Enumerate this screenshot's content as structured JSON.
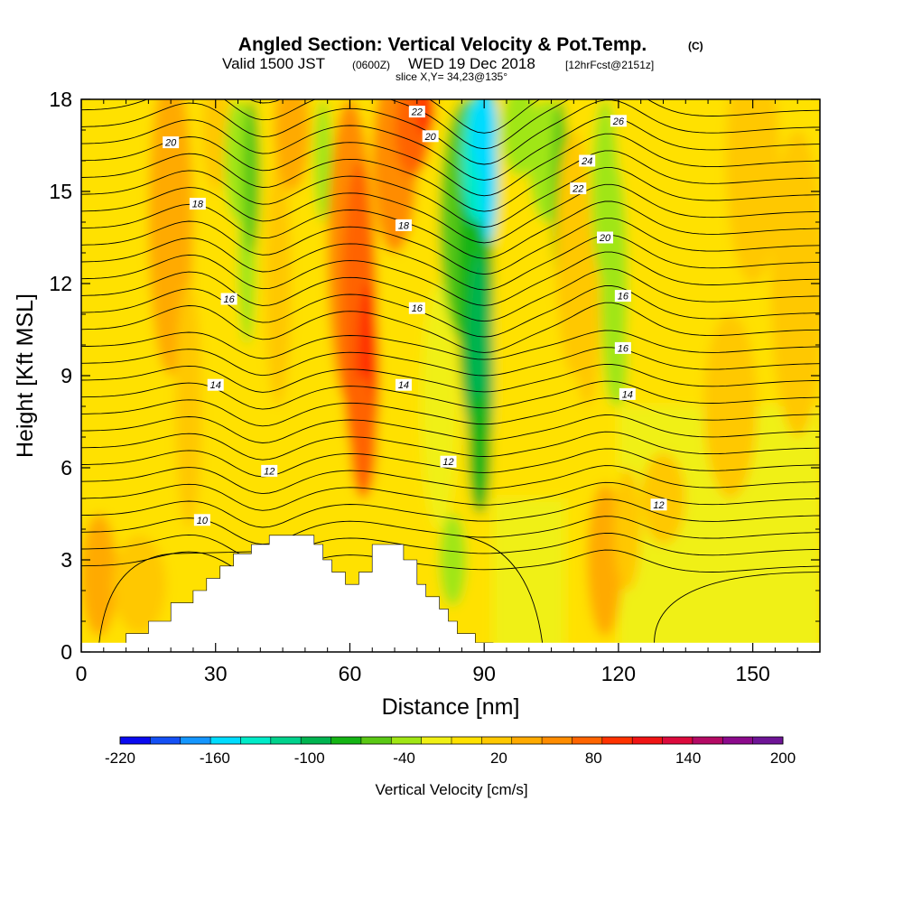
{
  "title": {
    "main": "Angled Section: Vertical Velocity & Pot.Temp.",
    "unit_tag": "(C)",
    "valid_prefix": "Valid 1500 JST",
    "valid_utc": "(0600Z)",
    "valid_date": "WED 19 Dec 2018",
    "forecast": "[12hrFcst@2151z]",
    "slice": "slice X,Y= 34,23@135°"
  },
  "chart_data": {
    "type": "heatmap",
    "xlabel": "Distance [nm]",
    "ylabel": "Height [Kft MSL]",
    "xlim": [
      0,
      165
    ],
    "ylim": [
      0,
      18
    ],
    "x_ticks": [
      "0",
      "30",
      "60",
      "90",
      "120",
      "150"
    ],
    "y_ticks": [
      "0",
      "3",
      "6",
      "9",
      "12",
      "15",
      "18"
    ],
    "colorbar": {
      "title": "Vertical Velocity [cm/s]",
      "tick_labels": [
        "-220",
        "-160",
        "-100",
        "-40",
        "20",
        "80",
        "140",
        "200"
      ],
      "colors": [
        "#0a0af0",
        "#1450f5",
        "#1496ff",
        "#00dcff",
        "#00ebc8",
        "#00d28c",
        "#00b450",
        "#14b414",
        "#5ac814",
        "#a0e614",
        "#f0f014",
        "#ffe100",
        "#ffc800",
        "#ffaa00",
        "#ff8c00",
        "#ff6400",
        "#ff3200",
        "#f01414",
        "#dc0a3c",
        "#b40a64",
        "#8c0a8c",
        "#6e1496"
      ]
    },
    "vertical_velocity_features": [
      {
        "type": "updraft",
        "x": 64,
        "y_range": [
          5,
          16
        ],
        "peak_cm_s": 110
      },
      {
        "type": "updraft",
        "x": 76,
        "y_range": [
          14,
          18
        ],
        "peak_cm_s": 60
      },
      {
        "type": "downdraft",
        "x": 89,
        "y_range": [
          5,
          18
        ],
        "peak_cm_s": -150
      },
      {
        "type": "downdraft",
        "x": 108,
        "y_range": [
          12,
          18
        ],
        "peak_cm_s": -60
      },
      {
        "type": "downdraft",
        "x": 37,
        "y_range": [
          13,
          18
        ],
        "peak_cm_s": -35
      },
      {
        "type": "updraft",
        "x": 118,
        "y_range": [
          1,
          5
        ],
        "peak_cm_s": 35
      }
    ],
    "potential_temperature_contours": [
      {
        "value": 10,
        "label": "10"
      },
      {
        "value": 12,
        "label": "12"
      },
      {
        "value": 14,
        "label": "14"
      },
      {
        "value": 16,
        "label": "16"
      },
      {
        "value": 18,
        "label": "18"
      },
      {
        "value": 20,
        "label": "20"
      },
      {
        "value": 22,
        "label": "22"
      },
      {
        "value": 24,
        "label": "24"
      },
      {
        "value": 26,
        "label": "26"
      }
    ],
    "terrain": [
      [
        0,
        0.3
      ],
      [
        10,
        0.3
      ],
      [
        10,
        0.6
      ],
      [
        15,
        0.6
      ],
      [
        15,
        1.0
      ],
      [
        20,
        1.0
      ],
      [
        20,
        1.6
      ],
      [
        25,
        1.6
      ],
      [
        25,
        2.0
      ],
      [
        33,
        2.0
      ],
      [
        33,
        3.2
      ],
      [
        38,
        3.2
      ],
      [
        38,
        3.5
      ],
      [
        42,
        3.5
      ],
      [
        42,
        3.8
      ],
      [
        50,
        3.8
      ],
      [
        50,
        3.2
      ],
      [
        55,
        3.2
      ],
      [
        55,
        2.6
      ],
      [
        58,
        2.6
      ],
      [
        58,
        2.2
      ],
      [
        62,
        2.2
      ],
      [
        62,
        2.6
      ],
      [
        65,
        2.6
      ],
      [
        65,
        3.5
      ],
      [
        70,
        3.5
      ],
      [
        70,
        2.8
      ],
      [
        75,
        2.8
      ],
      [
        75,
        1.8
      ],
      [
        80,
        1.8
      ],
      [
        80,
        1.0
      ],
      [
        84,
        1.0
      ],
      [
        84,
        0.6
      ],
      [
        90,
        0.6
      ],
      [
        90,
        0.3
      ],
      [
        165,
        0.3
      ]
    ]
  }
}
